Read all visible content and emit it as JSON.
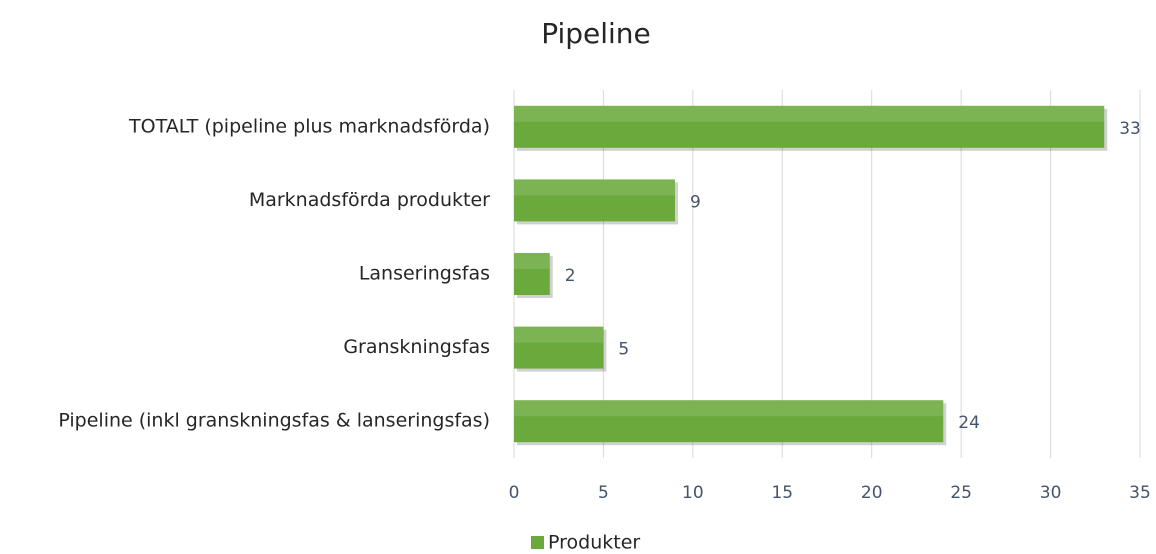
{
  "chart_data": {
    "type": "bar",
    "orientation": "horizontal",
    "title": "Pipeline",
    "categories": [
      "TOTALT (pipeline plus marknadsförda)",
      "Marknadsförda produkter",
      "Lanseringsfas",
      "Granskningsfas",
      "Pipeline (inkl granskningsfas & lanseringsfas)"
    ],
    "series": [
      {
        "name": "Produkter",
        "color": "#6aaa3c",
        "values": [
          33,
          9,
          2,
          5,
          24
        ]
      }
    ],
    "xlim": [
      0,
      35
    ],
    "xticks": [
      0,
      5,
      10,
      15,
      20,
      25,
      30,
      35
    ],
    "grid": true,
    "legend": "bottom"
  }
}
